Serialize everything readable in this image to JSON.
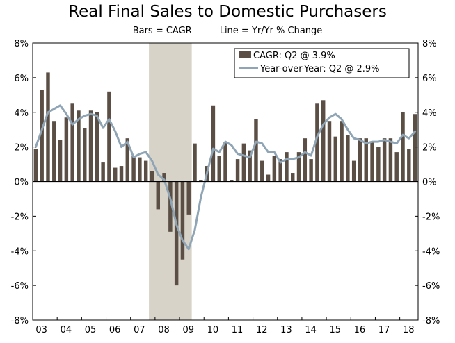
{
  "chart_data": {
    "type": "bar",
    "title": "Real Final Sales to Domestic Purchasers",
    "subtitle_left": "Bars = CAGR",
    "subtitle_right": "Line = Yr/Yr % Change",
    "ylim": [
      -8,
      8
    ],
    "y_ticks": [
      "-8%",
      "-6%",
      "-4%",
      "-2%",
      "0%",
      "2%",
      "4%",
      "6%",
      "8%"
    ],
    "x_ticks": [
      "03",
      "04",
      "05",
      "06",
      "07",
      "08",
      "09",
      "10",
      "11",
      "12",
      "13",
      "14",
      "15",
      "16",
      "17",
      "18"
    ],
    "start": "2003Q1",
    "shaded_period": [
      "2007Q4",
      "2009Q2"
    ],
    "legend": [
      {
        "label": "CAGR: Q2 @ 3.9%",
        "kind": "bar"
      },
      {
        "label": "Year-over-Year: Q2 @ 2.9%",
        "kind": "line"
      }
    ],
    "colors": {
      "bar": "#5b4f45",
      "line": "#8fa5b5",
      "shade": "#d8d3c8"
    },
    "series": [
      {
        "name": "CAGR",
        "kind": "bar",
        "values": [
          1.9,
          5.3,
          6.3,
          3.5,
          2.4,
          3.7,
          4.5,
          4.1,
          3.1,
          4.1,
          4.0,
          1.1,
          5.2,
          0.8,
          0.9,
          2.5,
          1.5,
          1.4,
          1.2,
          0.6,
          -1.6,
          0.5,
          -2.9,
          -6.0,
          -4.5,
          -1.9,
          2.2,
          0.1,
          0.9,
          4.4,
          1.5,
          2.3,
          0.1,
          1.3,
          2.2,
          1.8,
          3.6,
          1.2,
          0.4,
          1.5,
          1.3,
          1.7,
          0.5,
          1.7,
          2.5,
          1.3,
          4.5,
          4.7,
          3.5,
          2.6,
          3.5,
          2.7,
          1.2,
          2.5,
          2.5,
          2.3,
          2.0,
          2.5,
          2.5,
          1.7,
          4.0,
          1.9,
          3.9
        ]
      },
      {
        "name": "Year-over-Year",
        "kind": "line",
        "values": [
          2.0,
          3.0,
          4.0,
          4.2,
          4.4,
          3.9,
          3.3,
          3.6,
          3.8,
          3.9,
          3.8,
          3.1,
          3.6,
          2.9,
          2.0,
          2.3,
          1.4,
          1.6,
          1.7,
          1.2,
          0.4,
          0.1,
          -1.0,
          -2.5,
          -3.4,
          -3.9,
          -2.8,
          -0.9,
          0.5,
          1.9,
          1.7,
          2.3,
          2.1,
          1.6,
          1.5,
          1.4,
          2.3,
          2.2,
          1.7,
          1.7,
          1.1,
          1.3,
          1.3,
          1.4,
          1.7,
          1.5,
          2.6,
          3.3,
          3.7,
          3.9,
          3.6,
          3.0,
          2.5,
          2.4,
          2.2,
          2.3,
          2.3,
          2.4,
          2.3,
          2.2,
          2.7,
          2.5,
          2.9
        ]
      }
    ]
  }
}
